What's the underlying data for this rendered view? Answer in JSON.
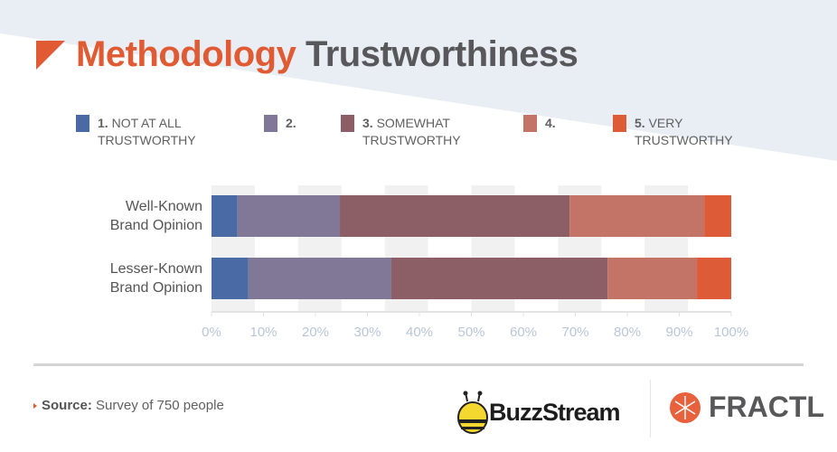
{
  "title": {
    "part1": "Methodology",
    "part2": "Trustworthiness"
  },
  "colors": {
    "accent": "#e05a33",
    "bg_band": "#e9eef5",
    "s1": "#4a6aa5",
    "s2": "#807896",
    "s3": "#8c5f67",
    "s4": "#c47367",
    "s5": "#dd5b37"
  },
  "legend": [
    {
      "num": "1.",
      "text": "NOT AT ALL\nTRUSTWORTHY"
    },
    {
      "num": "2.",
      "text": ""
    },
    {
      "num": "3.",
      "text": "SOMEWHAT\nTRUSTWORTHY"
    },
    {
      "num": "4.",
      "text": ""
    },
    {
      "num": "5.",
      "text": "VERY\nTRUSTWORTHY"
    }
  ],
  "chart_data": {
    "type": "bar",
    "orientation": "horizontal-stacked",
    "title": "Methodology Trustworthiness",
    "categories": [
      "Well-Known\nBrand Opinion",
      "Lesser-Known\nBrand Opinion"
    ],
    "series": [
      {
        "name": "1. NOT AT ALL TRUSTWORTHY",
        "values": [
          5.0,
          7.1
        ]
      },
      {
        "name": "2.",
        "values": [
          19.7,
          27.5
        ]
      },
      {
        "name": "3. SOMEWHAT TRUSTWORTHY",
        "values": [
          44.2,
          41.6
        ]
      },
      {
        "name": "4.",
        "values": [
          25.9,
          17.2
        ]
      },
      {
        "name": "5. VERY TRUSTWORTHY",
        "values": [
          5.2,
          6.6
        ]
      }
    ],
    "xlim": [
      0,
      100
    ],
    "xticks": [
      "0%",
      "10%",
      "20%",
      "30%",
      "40%",
      "50%",
      "60%",
      "70%",
      "80%",
      "90%",
      "100%"
    ],
    "legend_position": "top"
  },
  "footer": {
    "source_label": "Source:",
    "source_text": " Survey of 750 people",
    "logo1": "BuzzStream",
    "logo2": "FRACTL"
  }
}
